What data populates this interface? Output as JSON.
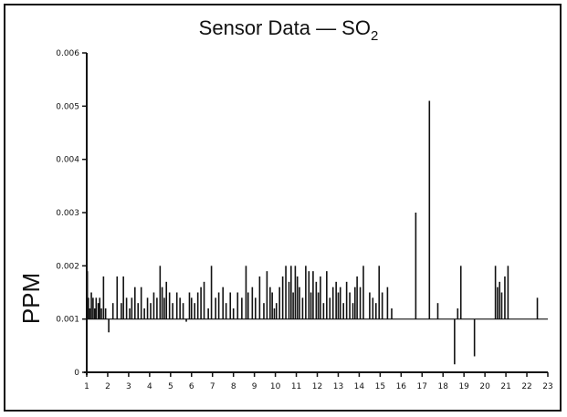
{
  "chart_data": {
    "type": "line",
    "title": "Sensor Data — SO",
    "title_subscript": "2",
    "xlabel": "",
    "ylabel": "PPM",
    "xlim": [
      1,
      23
    ],
    "ylim": [
      0,
      0.006
    ],
    "baseline": 0.001,
    "x_ticks": [
      "1",
      "2",
      "3",
      "4",
      "5",
      "6",
      "7",
      "8",
      "9",
      "10",
      "11",
      "12",
      "13",
      "14",
      "15",
      "16",
      "17",
      "18",
      "19",
      "20",
      "21",
      "22",
      "23"
    ],
    "y_ticks": [
      "0",
      "0.001",
      "0.002",
      "0.003",
      "0.004",
      "0.005",
      "0.006"
    ],
    "series": [
      {
        "color": "#111111",
        "x": [
          1.03,
          1.08,
          1.15,
          1.22,
          1.3,
          1.38,
          1.45,
          1.55,
          1.62,
          1.7,
          1.8,
          1.9,
          2.05,
          2.25,
          2.45,
          2.65,
          2.75,
          2.9,
          3.05,
          3.15,
          3.3,
          3.45,
          3.6,
          3.75,
          3.9,
          4.05,
          4.2,
          4.35,
          4.5,
          4.6,
          4.7,
          4.8,
          4.95,
          5.1,
          5.3,
          5.45,
          5.6,
          5.75,
          5.9,
          6.0,
          6.15,
          6.3,
          6.45,
          6.6,
          6.8,
          6.95,
          7.15,
          7.3,
          7.5,
          7.65,
          7.85,
          8.0,
          8.2,
          8.4,
          8.6,
          8.7,
          8.9,
          9.05,
          9.25,
          9.45,
          9.6,
          9.75,
          9.85,
          9.95,
          10.05,
          10.2,
          10.35,
          10.5,
          10.65,
          10.75,
          10.85,
          10.95,
          11.05,
          11.15,
          11.3,
          11.45,
          11.6,
          11.7,
          11.8,
          11.95,
          12.05,
          12.15,
          12.3,
          12.45,
          12.6,
          12.75,
          12.9,
          13.0,
          13.1,
          13.25,
          13.4,
          13.55,
          13.7,
          13.8,
          13.9,
          14.05,
          14.2,
          14.5,
          14.65,
          14.8,
          14.95,
          15.1,
          15.35,
          15.55,
          16.7,
          17.35,
          17.75,
          18.55,
          18.7,
          18.85,
          19.5,
          20.5,
          20.6,
          20.7,
          20.8,
          20.95,
          21.1,
          22.5
        ],
        "y": [
          0.0019,
          0.0014,
          0.0012,
          0.0015,
          0.0014,
          0.0012,
          0.0014,
          0.0013,
          0.0014,
          0.0012,
          0.0018,
          0.0012,
          0.00075,
          0.0013,
          0.0018,
          0.0013,
          0.0018,
          0.0014,
          0.0012,
          0.0014,
          0.0016,
          0.0013,
          0.0016,
          0.0012,
          0.0014,
          0.0013,
          0.0015,
          0.0014,
          0.002,
          0.0016,
          0.0014,
          0.0017,
          0.0015,
          0.0013,
          0.0015,
          0.0014,
          0.0013,
          0.00095,
          0.0015,
          0.0014,
          0.0013,
          0.0015,
          0.0016,
          0.0017,
          0.0012,
          0.002,
          0.0014,
          0.0015,
          0.0016,
          0.0013,
          0.0015,
          0.0012,
          0.0015,
          0.0014,
          0.002,
          0.0015,
          0.0016,
          0.0014,
          0.0018,
          0.0013,
          0.0019,
          0.0016,
          0.0015,
          0.0012,
          0.0013,
          0.0016,
          0.0018,
          0.002,
          0.0017,
          0.002,
          0.0015,
          0.002,
          0.0018,
          0.0016,
          0.0014,
          0.002,
          0.0019,
          0.0015,
          0.0019,
          0.0017,
          0.0015,
          0.0018,
          0.0013,
          0.0019,
          0.0014,
          0.0016,
          0.0017,
          0.0015,
          0.0016,
          0.0013,
          0.0017,
          0.0015,
          0.0013,
          0.0016,
          0.0018,
          0.0016,
          0.002,
          0.0015,
          0.0014,
          0.0013,
          0.002,
          0.0015,
          0.0016,
          0.0012,
          0.003,
          0.0051,
          0.0013,
          0.00015,
          0.0012,
          0.002,
          0.0003,
          0.002,
          0.0016,
          0.0017,
          0.0015,
          0.0018,
          0.002,
          0.0014
        ]
      }
    ]
  }
}
